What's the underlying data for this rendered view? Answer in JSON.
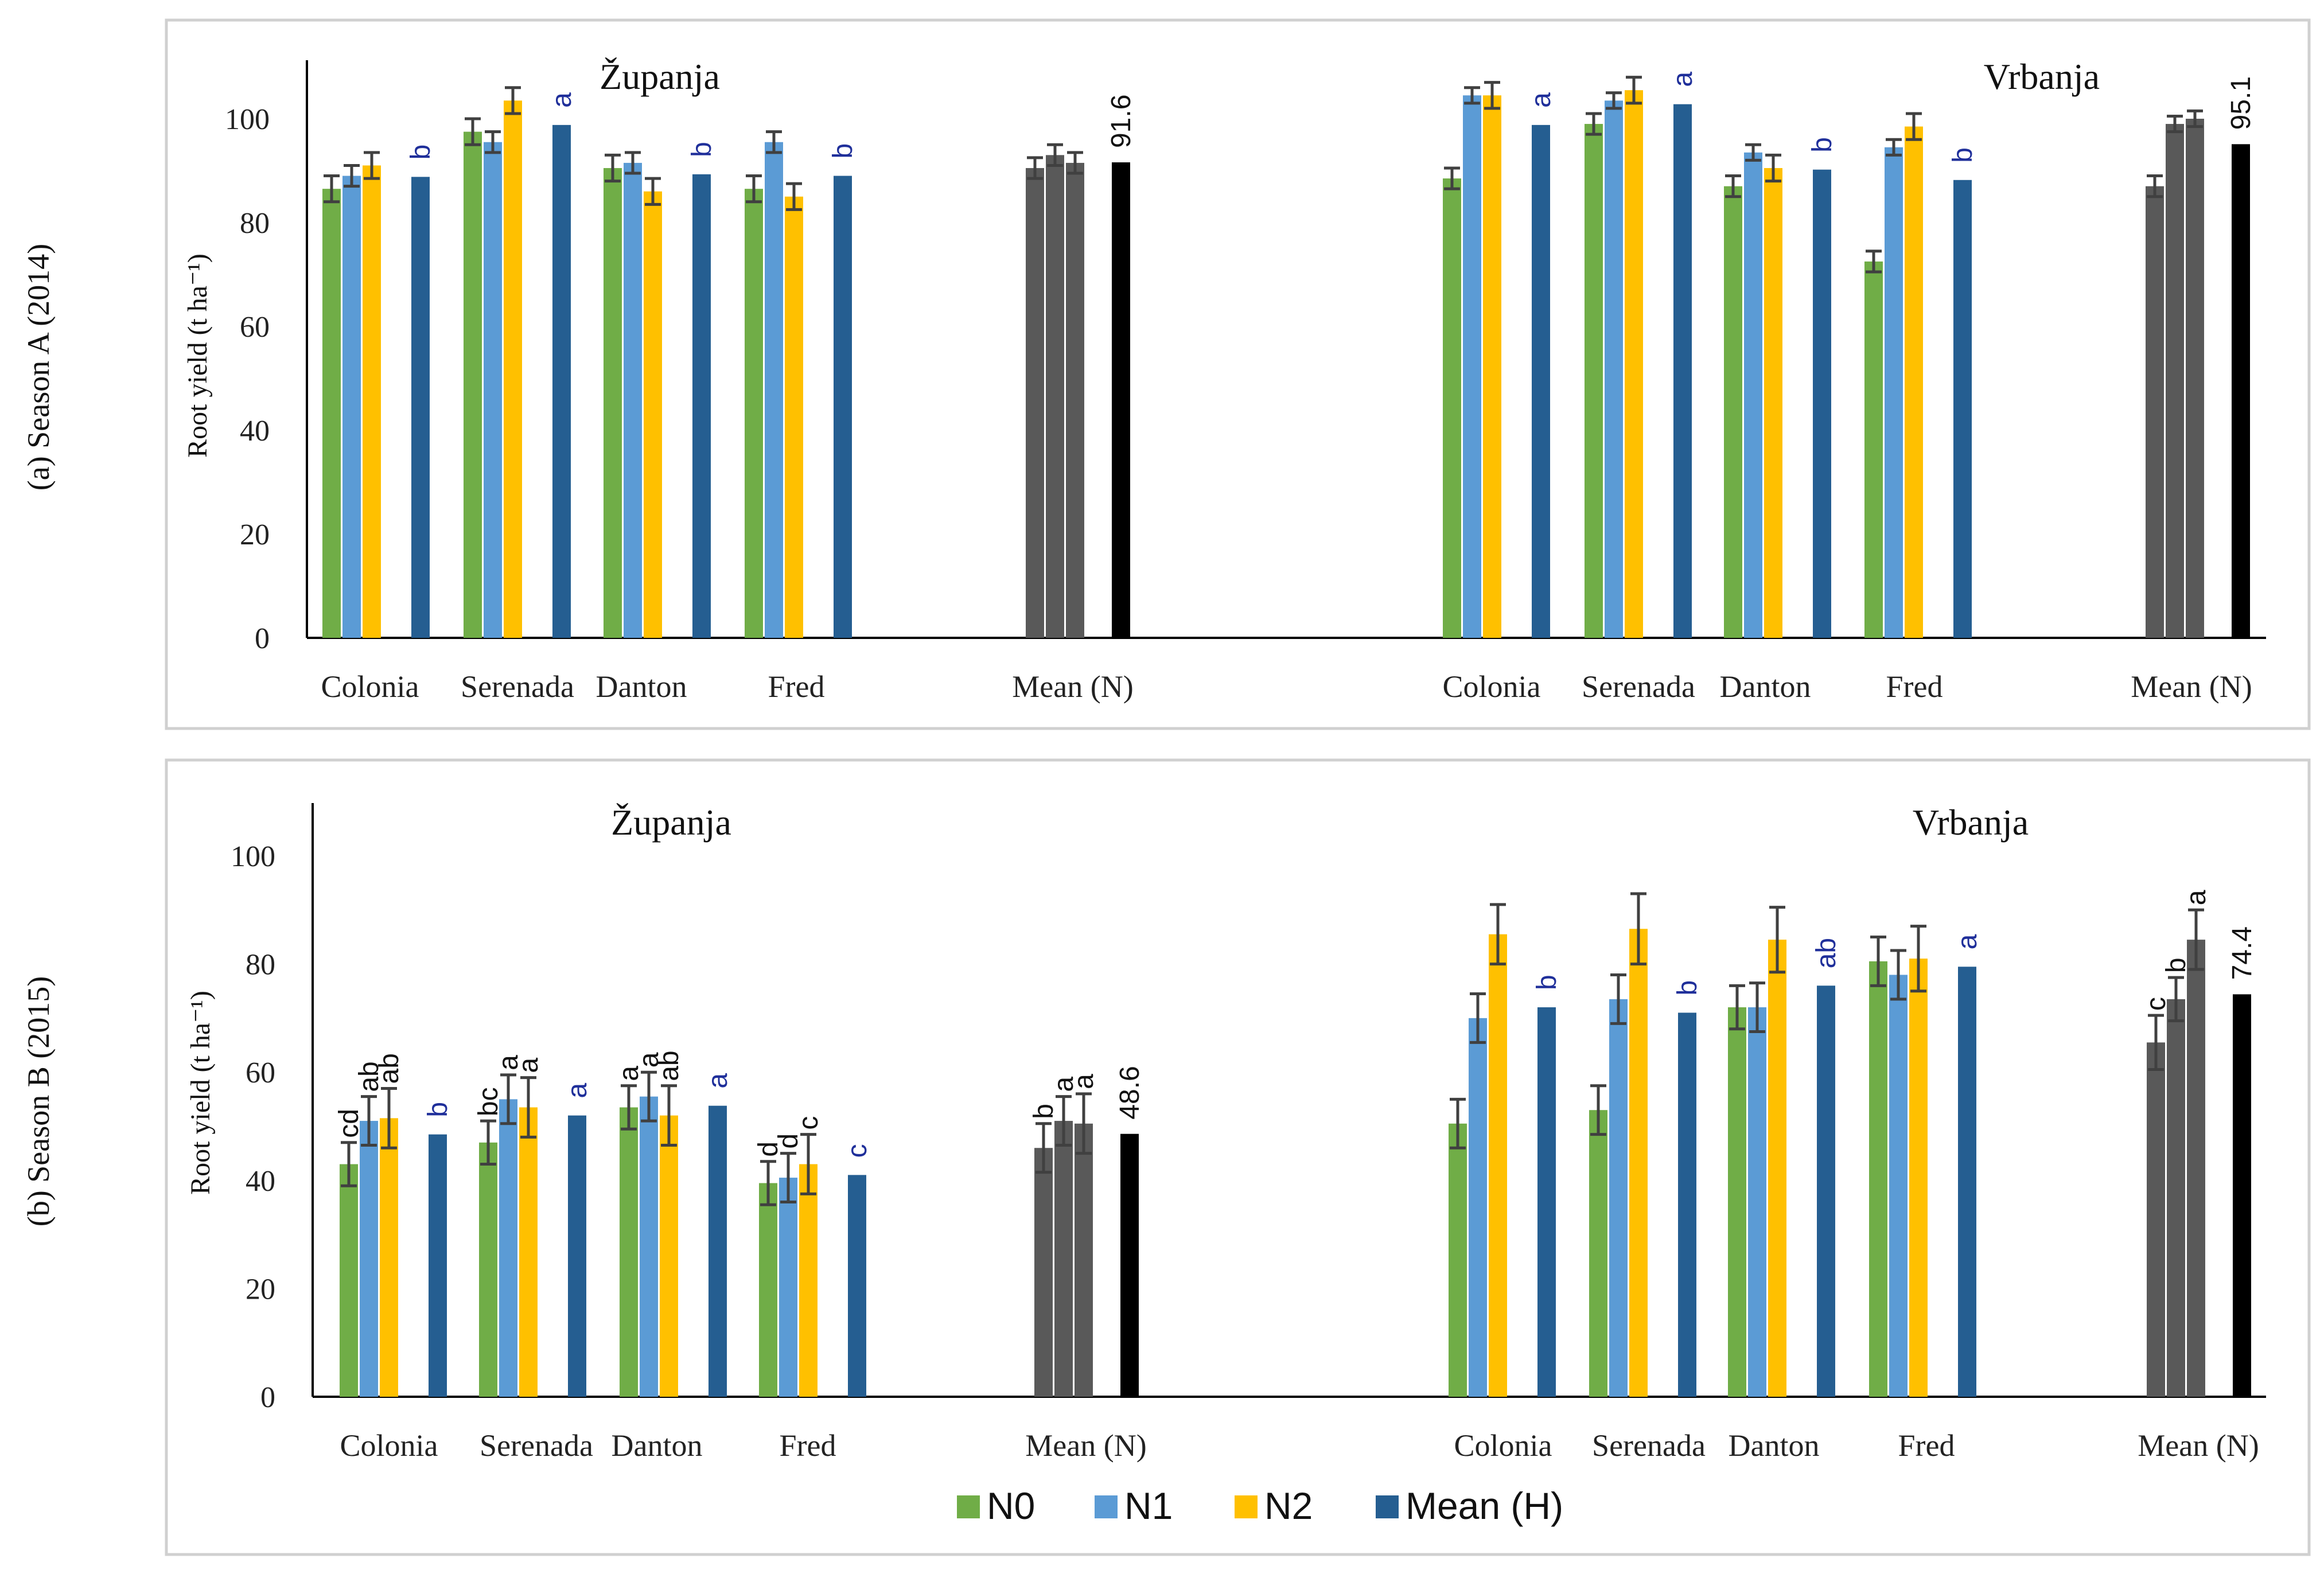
{
  "chart_data": [
    {
      "type": "bar",
      "panel": "a",
      "season_label": "(a) Season A (2014)",
      "ylabel": "Root yield (t ha⁻¹)",
      "ylim": [
        0,
        110
      ],
      "yticks": [
        0,
        20,
        40,
        60,
        80,
        100
      ],
      "groups": [
        {
          "site": "Županja",
          "categories": [
            "Colonia",
            "Serenada",
            "Danton",
            "Fred"
          ],
          "series": {
            "N0": {
              "values": [
                86.5,
                97.5,
                90.5,
                86.5
              ],
              "errors": [
                2.5,
                2.5,
                2.5,
                2.5
              ]
            },
            "N1": {
              "values": [
                89,
                95.5,
                91.5,
                95.5
              ],
              "errors": [
                2,
                2,
                2,
                2
              ]
            },
            "N2": {
              "values": [
                91,
                103.5,
                86,
                85
              ],
              "errors": [
                2.5,
                2.5,
                2.5,
                2.5
              ]
            },
            "Mean (H)": {
              "values": [
                88.8,
                98.8,
                89.3,
                89
              ],
              "errors": [
                0,
                0,
                0,
                0
              ]
            }
          },
          "sig_letters": [
            "b",
            "a",
            "b",
            "b"
          ],
          "mean_n": {
            "values": [
              90.5,
              93,
              91.5
            ],
            "errors": [
              2,
              2,
              2
            ]
          },
          "mean_n_letters": [
            "",
            "",
            ""
          ],
          "overall_mean": 91.6,
          "overall_mean_label": "91.6"
        },
        {
          "site": "Vrbanja",
          "categories": [
            "Colonia",
            "Serenada",
            "Danton",
            "Fred"
          ],
          "series": {
            "N0": {
              "values": [
                88.5,
                99,
                87,
                72.5
              ],
              "errors": [
                2,
                2,
                2,
                2
              ]
            },
            "N1": {
              "values": [
                104.5,
                103.5,
                93.5,
                94.5
              ],
              "errors": [
                1.5,
                1.5,
                1.5,
                1.5
              ]
            },
            "N2": {
              "values": [
                104.5,
                105.5,
                90.5,
                98.5
              ],
              "errors": [
                2.5,
                2.5,
                2.5,
                2.5
              ]
            },
            "Mean (H)": {
              "values": [
                98.8,
                102.8,
                90.2,
                88.2
              ],
              "errors": [
                0,
                0,
                0,
                0
              ]
            }
          },
          "sig_letters": [
            "a",
            "a",
            "b",
            "b"
          ],
          "mean_n": {
            "values": [
              87,
              99,
              100
            ],
            "errors": [
              2,
              1.5,
              1.5
            ]
          },
          "mean_n_letters": [
            "",
            "",
            ""
          ],
          "overall_mean": 95.1,
          "overall_mean_label": "95.1"
        }
      ]
    },
    {
      "type": "bar",
      "panel": "b",
      "season_label": "(b) Season B (2015)",
      "ylabel": "Root yield (t ha⁻¹)",
      "ylim": [
        0,
        110
      ],
      "yticks": [
        0,
        20,
        40,
        60,
        80,
        100
      ],
      "groups": [
        {
          "site": "Županja",
          "categories": [
            "Colonia",
            "Serenada",
            "Danton",
            "Fred"
          ],
          "series": {
            "N0": {
              "values": [
                43,
                47,
                53.5,
                39.5
              ],
              "errors": [
                4,
                4,
                4,
                4
              ]
            },
            "N1": {
              "values": [
                51,
                55,
                55.5,
                40.5
              ],
              "errors": [
                4.5,
                4.5,
                4.5,
                4.5
              ]
            },
            "N2": {
              "values": [
                51.5,
                53.5,
                52,
                43
              ],
              "errors": [
                5.5,
                5.5,
                5.5,
                5.5
              ]
            },
            "Mean (H)": {
              "values": [
                48.5,
                52,
                53.8,
                41
              ],
              "errors": [
                0,
                0,
                0,
                0
              ]
            }
          },
          "bar_letters": [
            [
              "cd",
              "ab",
              "ab"
            ],
            [
              "bc",
              "a",
              "a"
            ],
            [
              "a",
              "a",
              "ab"
            ],
            [
              "d",
              "d",
              "c"
            ]
          ],
          "sig_letters": [
            "b",
            "a",
            "a",
            "c"
          ],
          "mean_n": {
            "values": [
              46,
              51,
              50.5
            ],
            "errors": [
              4.5,
              4.5,
              5.5
            ]
          },
          "mean_n_letters": [
            "b",
            "a",
            "a"
          ],
          "overall_mean": 48.6,
          "overall_mean_label": "48.6"
        },
        {
          "site": "Vrbanja",
          "categories": [
            "Colonia",
            "Serenada",
            "Danton",
            "Fred"
          ],
          "series": {
            "N0": {
              "values": [
                50.5,
                53,
                72,
                80.5
              ],
              "errors": [
                4.5,
                4.5,
                4,
                4.5
              ]
            },
            "N1": {
              "values": [
                70,
                73.5,
                72,
                78
              ],
              "errors": [
                4.5,
                4.5,
                4.5,
                4.5
              ]
            },
            "N2": {
              "values": [
                85.5,
                86.5,
                84.5,
                81
              ],
              "errors": [
                5.5,
                6.5,
                6,
                6
              ]
            },
            "Mean (H)": {
              "values": [
                72,
                71,
                76,
                79.5
              ],
              "errors": [
                0,
                0,
                0,
                0
              ]
            }
          },
          "sig_letters": [
            "b",
            "b",
            "ab",
            "a"
          ],
          "mean_n": {
            "values": [
              65.5,
              73.5,
              84.5
            ],
            "errors": [
              5,
              4,
              5.5
            ]
          },
          "mean_n_letters": [
            "c",
            "b",
            "a"
          ],
          "overall_mean": 74.4,
          "overall_mean_label": "74.4"
        }
      ]
    }
  ],
  "labels": {
    "mean_n": "Mean (N)"
  },
  "legend": [
    {
      "name": "N0",
      "color": "#70ad47"
    },
    {
      "name": "N1",
      "color": "#5b9bd5"
    },
    {
      "name": "N2",
      "color": "#ffc000"
    },
    {
      "name": "Mean (H)",
      "color": "#255e91"
    }
  ],
  "colors": {
    "N0": "#70ad47",
    "N1": "#5b9bd5",
    "N2": "#ffc000",
    "Mean (H)": "#255e91",
    "mean_n_bars": "#595959",
    "overall_mean_bar": "#000000",
    "sig_letters": "#1f2f9a",
    "error_bars": "#404040"
  }
}
